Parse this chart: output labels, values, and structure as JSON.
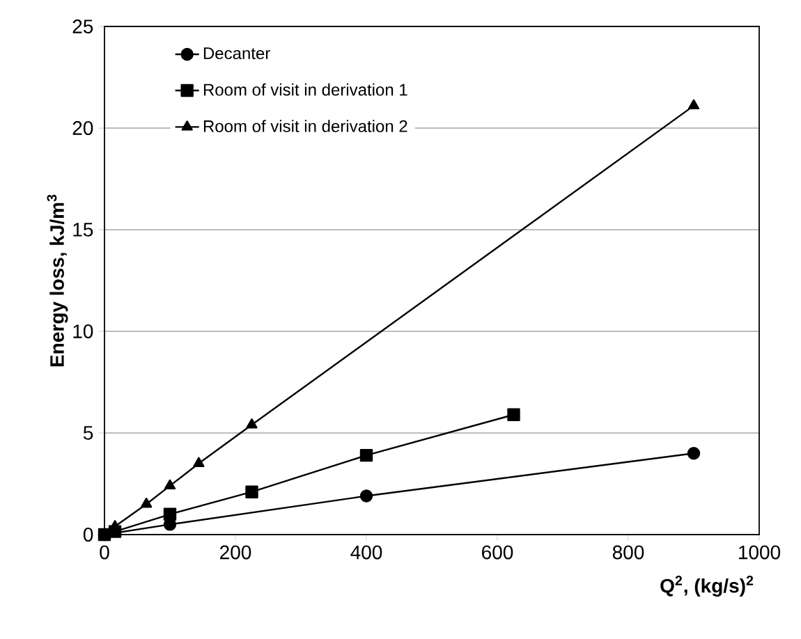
{
  "chart_data": {
    "type": "line",
    "xlabel": "Q$^{2}$, (kg/s)$^{2}$",
    "ylabel": "Energy loss, kJ/m$^{3}$",
    "xlim": [
      0,
      1000
    ],
    "ylim": [
      0,
      25
    ],
    "xticks": [
      0,
      200,
      400,
      600,
      800,
      1000
    ],
    "yticks": [
      0,
      5,
      10,
      15,
      20,
      25
    ],
    "grid": "y",
    "legend": "top left",
    "series": [
      {
        "name": "Decanter",
        "color": "#000000",
        "marker": "circle",
        "x": [
          0,
          16,
          100,
          400,
          900
        ],
        "values": [
          0,
          null,
          0.5,
          1.9,
          4.0
        ]
      },
      {
        "name": "Room of visit in derivation 1",
        "color": "#000000",
        "marker": "square",
        "x": [
          0,
          16,
          100,
          225,
          400,
          625
        ],
        "values": [
          0,
          0.15,
          1.0,
          2.1,
          3.9,
          5.9
        ]
      },
      {
        "name": "Room of visit in derivation 2",
        "color": "#000000",
        "marker": "triangle",
        "x": [
          0,
          16,
          64,
          100,
          144,
          225,
          900
        ],
        "values": [
          0,
          0.4,
          1.5,
          2.4,
          3.5,
          5.4,
          21.1
        ]
      }
    ]
  }
}
